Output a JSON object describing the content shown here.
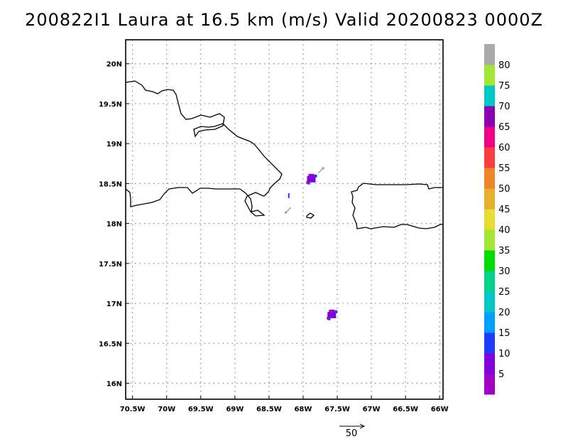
{
  "title": "200822I1 Laura at 16.5 km (m/s) Valid 20200823 0000Z",
  "map": {
    "lon_range": [
      -70.6,
      -65.95
    ],
    "lat_range": [
      15.8,
      20.3
    ],
    "lon_ticks": [
      "70.5W",
      "70W",
      "69.5W",
      "69W",
      "68.5W",
      "68W",
      "67.5W",
      "67W",
      "66.5W",
      "66W"
    ],
    "lon_tick_values": [
      -70.5,
      -70,
      -69.5,
      -69,
      -68.5,
      -68,
      -67.5,
      -67,
      -66.5,
      -66
    ],
    "lat_ticks": [
      "20N",
      "19.5N",
      "19N",
      "18.5N",
      "18N",
      "17.5N",
      "17N",
      "16.5N",
      "16N"
    ],
    "lat_tick_values": [
      20,
      19.5,
      19,
      18.5,
      18,
      17.5,
      17,
      16.5,
      16
    ],
    "grid": true,
    "coastline_color": "#000000",
    "grid_color": "#888888"
  },
  "colorbar": {
    "labels": [
      "5",
      "10",
      "15",
      "20",
      "25",
      "30",
      "35",
      "40",
      "45",
      "50",
      "55",
      "60",
      "65",
      "70",
      "75",
      "80"
    ],
    "colors": [
      "#a000c8",
      "#8200dc",
      "#1e3cff",
      "#00a0ff",
      "#00c8c8",
      "#00d28c",
      "#00dc00",
      "#a0e632",
      "#e6dc32",
      "#e6af2d",
      "#f08228",
      "#fa3c3c",
      "#f00082",
      "#8c00b4",
      "#00c8c8",
      "#a0e632",
      "#aaaaaa"
    ]
  },
  "wind_patches": [
    {
      "name": "patch-north",
      "lon": -67.88,
      "lat": 18.55,
      "speed": 8
    },
    {
      "name": "patch-south",
      "lon": -67.58,
      "lat": 16.85,
      "speed": 6
    }
  ],
  "vectors": [
    {
      "lon": -68.18,
      "lat": 18.2,
      "dir": "sw",
      "color": "#999999"
    },
    {
      "lon": -67.78,
      "lat": 18.63,
      "dir": "ne",
      "color": "#999999"
    }
  ],
  "reference_vector": {
    "label": "50"
  }
}
